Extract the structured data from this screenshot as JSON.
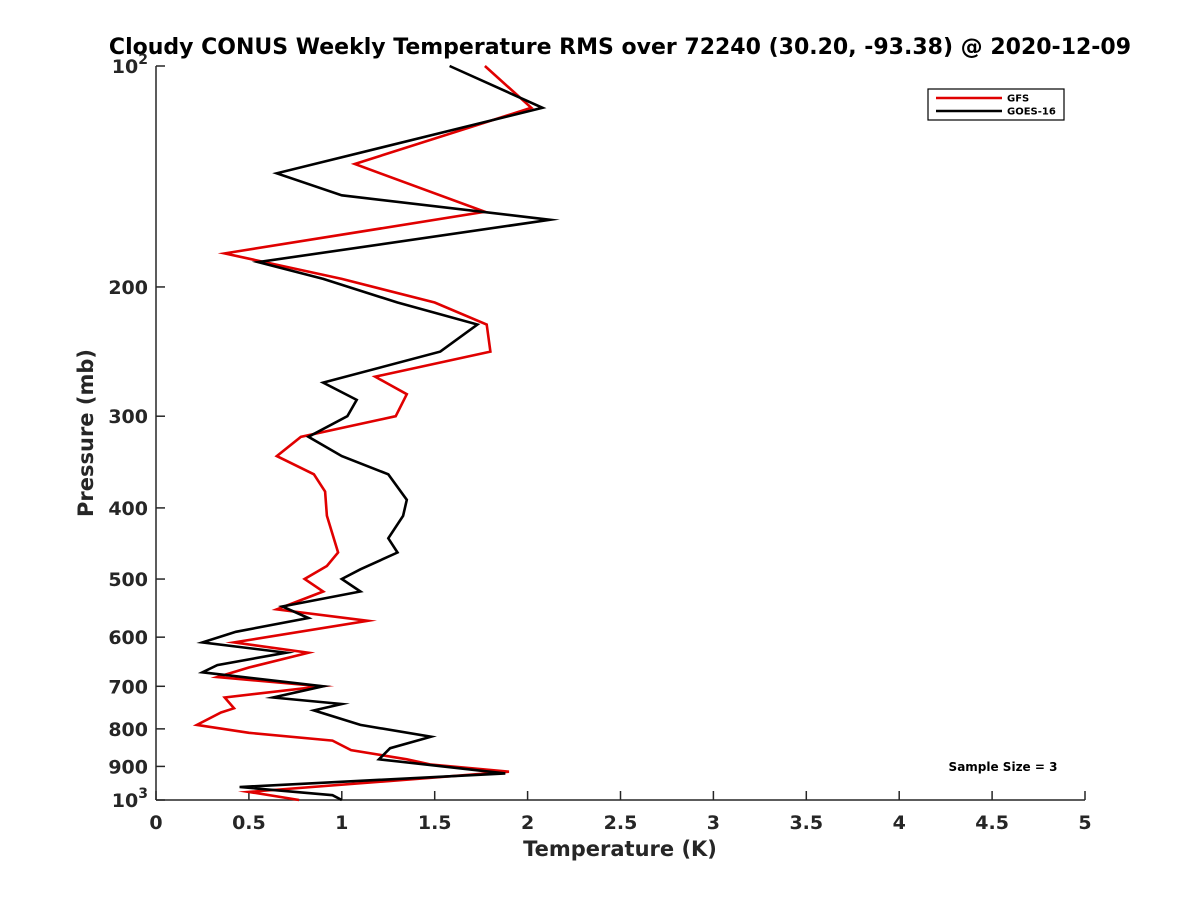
{
  "chart_data": {
    "type": "line",
    "title": "Cloudy CONUS Weekly Temperature RMS over 72240 (30.20, -93.38) @ 2020-12-09",
    "xlabel": "Temperature (K)",
    "ylabel": "Pressure (mb)",
    "xlim": [
      0,
      5
    ],
    "ylim": [
      1000,
      100
    ],
    "y_scale": "log",
    "y_reversed": true,
    "x_ticks": [
      0,
      0.5,
      1,
      1.5,
      2,
      2.5,
      3,
      3.5,
      4,
      4.5,
      5
    ],
    "x_tick_labels": [
      "0",
      "0.5",
      "1",
      "1.5",
      "2",
      "2.5",
      "3",
      "3.5",
      "4",
      "4.5",
      "5"
    ],
    "y_ticks": [
      {
        "value": 100,
        "base": "10",
        "exp": "2",
        "label": ""
      },
      {
        "value": 200,
        "label": "200"
      },
      {
        "value": 300,
        "label": "300"
      },
      {
        "value": 400,
        "label": "400"
      },
      {
        "value": 500,
        "label": "500"
      },
      {
        "value": 600,
        "label": "600"
      },
      {
        "value": 700,
        "label": "700"
      },
      {
        "value": 800,
        "label": "800"
      },
      {
        "value": 900,
        "label": "900"
      },
      {
        "value": 1000,
        "base": "10",
        "exp": "3",
        "label": ""
      }
    ],
    "grid": false,
    "legend_position": "top-right",
    "series": [
      {
        "name": "GFS",
        "color": "#e00000",
        "points": [
          [
            1.77,
            100
          ],
          [
            2.02,
            114
          ],
          [
            1.07,
            136
          ],
          [
            1.77,
            158
          ],
          [
            0.37,
            180
          ],
          [
            1.0,
            195
          ],
          [
            1.5,
            210
          ],
          [
            1.78,
            225
          ],
          [
            1.8,
            245
          ],
          [
            1.18,
            265
          ],
          [
            1.35,
            280
          ],
          [
            1.29,
            300
          ],
          [
            0.78,
            320
          ],
          [
            0.65,
            340
          ],
          [
            0.85,
            360
          ],
          [
            0.91,
            380
          ],
          [
            0.92,
            410
          ],
          [
            0.98,
            460
          ],
          [
            0.92,
            480
          ],
          [
            0.8,
            500
          ],
          [
            0.9,
            520
          ],
          [
            0.65,
            550
          ],
          [
            1.14,
            570
          ],
          [
            0.42,
            610
          ],
          [
            0.82,
            630
          ],
          [
            0.5,
            660
          ],
          [
            0.33,
            680
          ],
          [
            0.89,
            700
          ],
          [
            0.37,
            725
          ],
          [
            0.42,
            750
          ],
          [
            0.35,
            760
          ],
          [
            0.22,
            790
          ],
          [
            0.5,
            810
          ],
          [
            0.95,
            830
          ],
          [
            1.05,
            855
          ],
          [
            1.35,
            880
          ],
          [
            1.48,
            895
          ],
          [
            1.9,
            915
          ],
          [
            0.5,
            975
          ],
          [
            0.77,
            1000
          ]
        ]
      },
      {
        "name": "GOES-16",
        "color": "#000000",
        "points": [
          [
            1.58,
            100
          ],
          [
            2.08,
            114
          ],
          [
            0.65,
            140
          ],
          [
            1.0,
            150
          ],
          [
            2.12,
            162
          ],
          [
            0.55,
            185
          ],
          [
            0.9,
            195
          ],
          [
            1.3,
            210
          ],
          [
            1.73,
            225
          ],
          [
            1.53,
            245
          ],
          [
            0.9,
            270
          ],
          [
            1.08,
            285
          ],
          [
            1.03,
            300
          ],
          [
            0.82,
            320
          ],
          [
            1.0,
            340
          ],
          [
            1.25,
            360
          ],
          [
            1.35,
            390
          ],
          [
            1.33,
            410
          ],
          [
            1.25,
            440
          ],
          [
            1.3,
            460
          ],
          [
            1.1,
            485
          ],
          [
            1.0,
            500
          ],
          [
            1.1,
            520
          ],
          [
            0.68,
            545
          ],
          [
            0.82,
            565
          ],
          [
            0.43,
            590
          ],
          [
            0.25,
            610
          ],
          [
            0.7,
            630
          ],
          [
            0.33,
            655
          ],
          [
            0.25,
            670
          ],
          [
            0.9,
            700
          ],
          [
            0.63,
            725
          ],
          [
            1.0,
            740
          ],
          [
            0.85,
            755
          ],
          [
            1.1,
            790
          ],
          [
            1.48,
            820
          ],
          [
            1.26,
            850
          ],
          [
            1.2,
            880
          ],
          [
            1.88,
            920
          ],
          [
            0.45,
            960
          ],
          [
            0.95,
            985
          ],
          [
            1.0,
            1000
          ]
        ]
      }
    ],
    "annotations": [
      {
        "text": "Sample Size = 3"
      }
    ]
  }
}
